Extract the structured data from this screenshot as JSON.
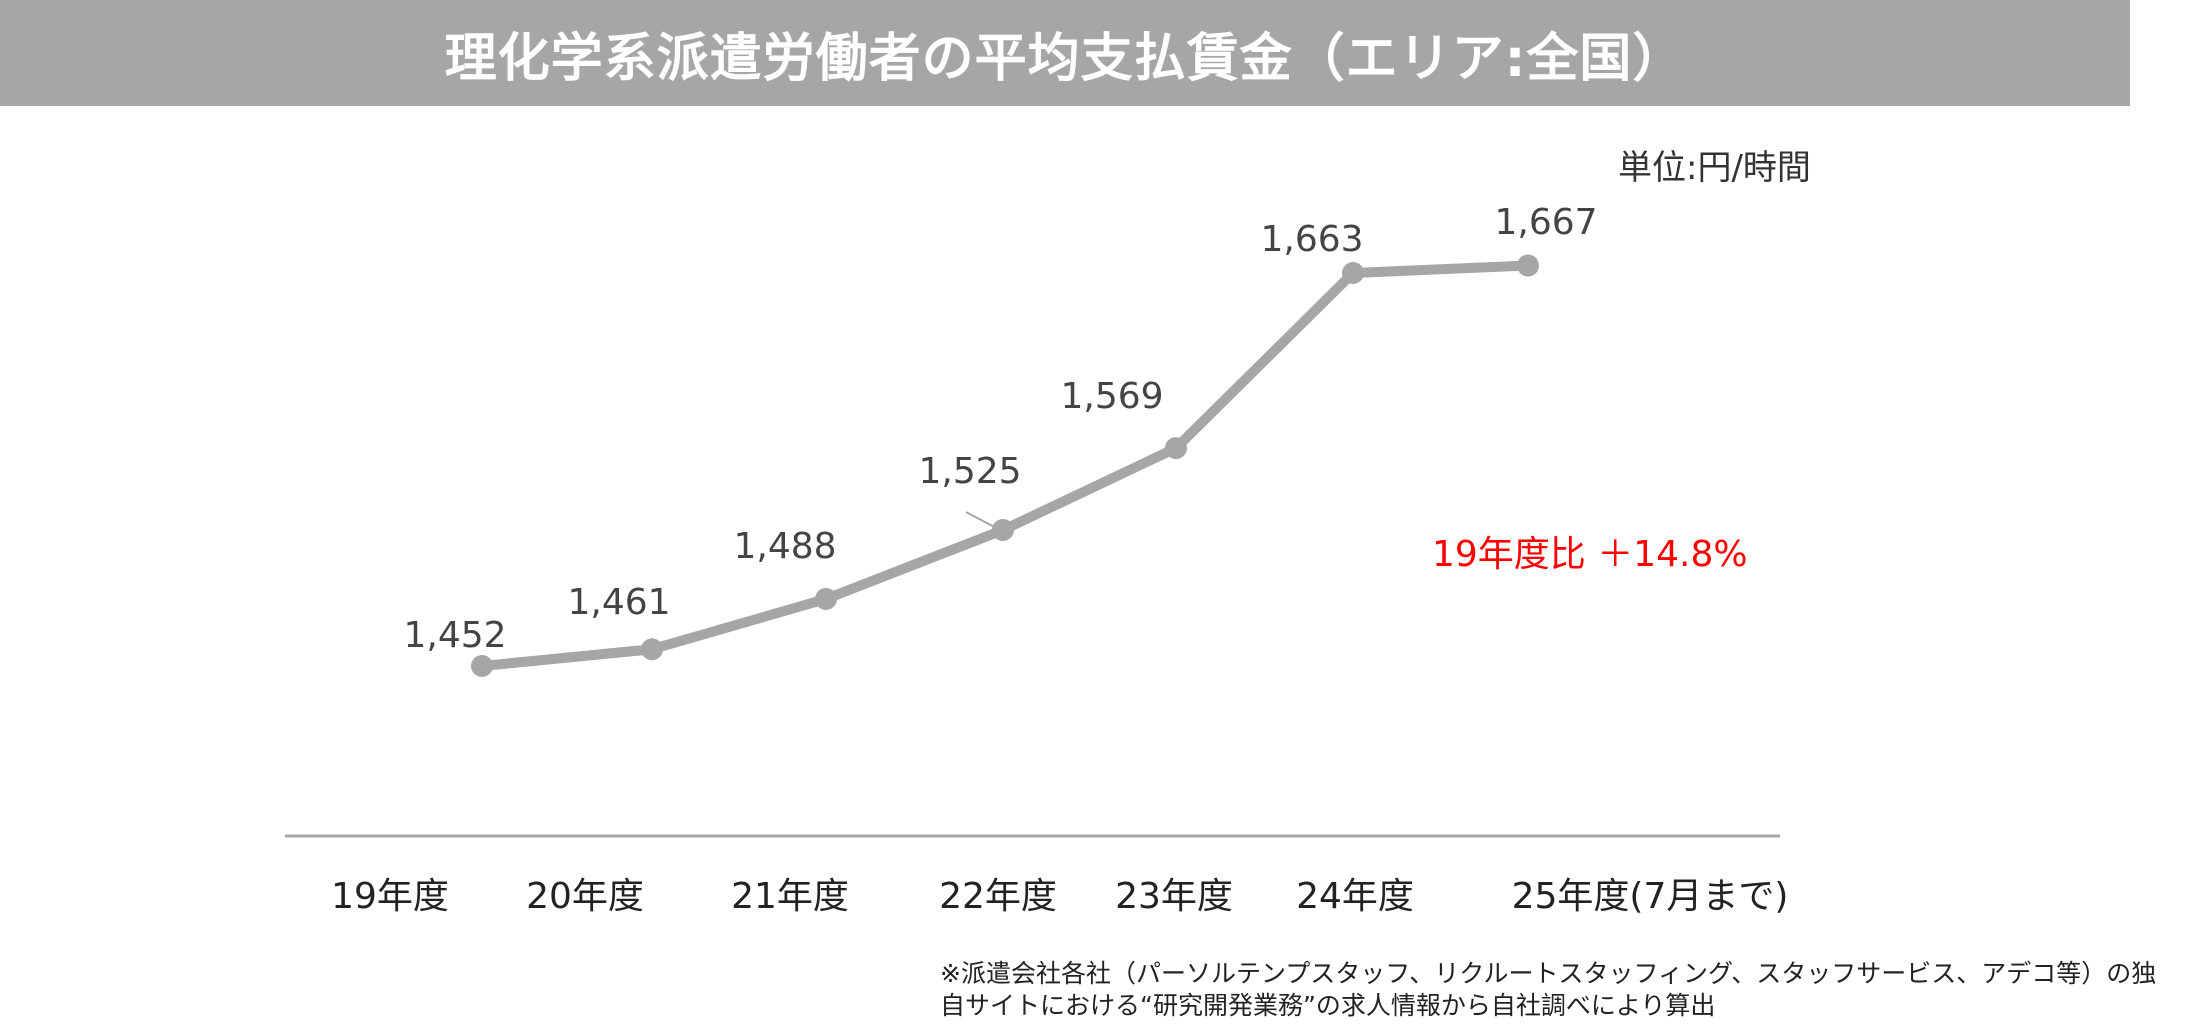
{
  "header": {
    "title": "理化学系派遣労働者の平均支払賃金（エリア:全国）"
  },
  "unit_label": "単位:円/時間",
  "chart_data": {
    "type": "line",
    "categories": [
      "19年度",
      "20年度",
      "21年度",
      "22年度",
      "23年度",
      "24年度",
      "25年度(7月まで)"
    ],
    "series": [
      {
        "values": [
          1452,
          1461,
          1488,
          1525,
          1569,
          1663,
          1667
        ],
        "labels": [
          "1,452",
          "1,461",
          "1,488",
          "1,525",
          "1,569",
          "1,663",
          "1,667"
        ]
      }
    ],
    "ylim": [
      1400,
      1680
    ],
    "grid": false,
    "legend": "none",
    "line_color": "#a6a6a6",
    "annotation": {
      "text": "19年度比 ＋14.8%",
      "color": "#ff0000"
    }
  },
  "footnote": {
    "line1": "※派遣会社各社（パーソルテンプスタッフ、リクルートスタッフィング、スタッフサービス、アデコ等）の独",
    "line2": "自サイトにおける“研究開発業務”の求人情報から自社調べにより算出"
  }
}
